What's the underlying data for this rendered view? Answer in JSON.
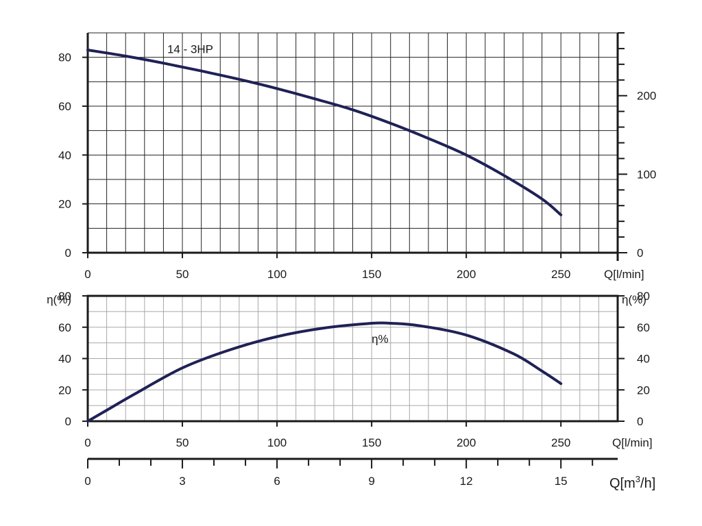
{
  "chart_data": [
    {
      "type": "line",
      "title": "",
      "xlabel": "Q[l/min]",
      "ylabel": "",
      "xlim": [
        0,
        280
      ],
      "ylim": [
        0,
        90
      ],
      "y2lim": [
        0,
        280
      ],
      "x_ticks": [
        0,
        50,
        100,
        150,
        200,
        250
      ],
      "y_ticks": [
        0,
        20,
        40,
        60,
        80
      ],
      "y2_ticks": [
        0,
        100,
        200
      ],
      "grid": true,
      "series": [
        {
          "name": "14 - 3HP",
          "x": [
            0,
            20,
            40,
            60,
            80,
            100,
            120,
            140,
            160,
            180,
            200,
            220,
            240,
            250
          ],
          "y": [
            83,
            80.5,
            77.6,
            74.4,
            71,
            67.2,
            63,
            58.5,
            53,
            46.8,
            40,
            31.6,
            22,
            15.5
          ]
        }
      ]
    },
    {
      "type": "line",
      "title": "",
      "xlabel": "Q[l/min]",
      "ylabel": "η(%)",
      "y2label": "η(%)",
      "xlim": [
        0,
        280
      ],
      "ylim": [
        0,
        80
      ],
      "x_ticks": [
        0,
        50,
        100,
        150,
        200,
        250
      ],
      "y_ticks": [
        0,
        20,
        40,
        60,
        80
      ],
      "grid": true,
      "series": [
        {
          "name": "η%",
          "x": [
            0,
            10,
            25,
            50,
            75,
            100,
            125,
            150,
            160,
            175,
            200,
            225,
            240,
            250
          ],
          "y": [
            0,
            7,
            17.5,
            34,
            45.5,
            54,
            59.5,
            62.5,
            62.5,
            61,
            55,
            43,
            32,
            24
          ]
        }
      ]
    },
    {
      "type": "axis",
      "xlabel_prefix": "Q[m",
      "xlabel_sup": "3",
      "xlabel_suffix": "/h]",
      "xlim": [
        0,
        16.8
      ],
      "x_ticks": [
        0,
        3,
        6,
        9,
        12,
        15
      ]
    }
  ]
}
